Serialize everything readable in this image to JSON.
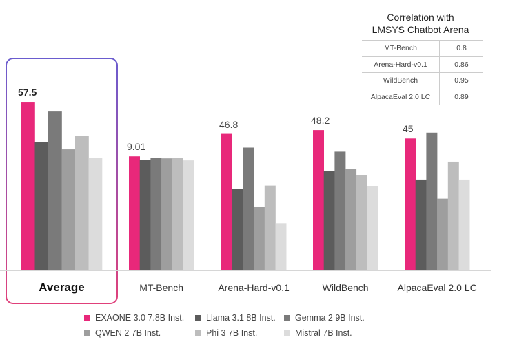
{
  "chart_data": {
    "type": "bar",
    "categories": [
      "Average",
      "MT-Bench",
      "Arena-Hard-v0.1",
      "WildBench",
      "AlpacaEval 2.0 LC"
    ],
    "highlighted_category": "Average",
    "series": [
      {
        "name": "EXAONE 3.0 7.8B Inst.",
        "color": "#e8287a",
        "values": [
          57.5,
          9.01,
          46.8,
          48.2,
          45
        ]
      },
      {
        "name": "Llama 3.1 8B Inst.",
        "color": "#5c5c5c",
        "values": [
          43.7,
          8.74,
          28.0,
          34.1,
          31.0
        ]
      },
      {
        "name": "Gemma 2 9B Inst.",
        "color": "#7a7a7a",
        "values": [
          54.2,
          8.9,
          42.1,
          40.8,
          47.0
        ]
      },
      {
        "name": "QWEN 2 7B Inst.",
        "color": "#9e9e9e",
        "values": [
          41.3,
          8.85,
          21.7,
          34.9,
          24.5
        ]
      },
      {
        "name": "Phi 3 7B Inst.",
        "color": "#bdbdbd",
        "values": [
          46.0,
          8.9,
          29.1,
          32.8,
          37.1
        ]
      },
      {
        "name": "Mistral 7B Inst.",
        "color": "#dcdcdc",
        "values": [
          38.3,
          8.69,
          16.2,
          29.0,
          31.0
        ]
      }
    ],
    "data_labels": [
      "57.5",
      "9.01",
      "46.8",
      "48.2",
      "45"
    ],
    "legend_position": "bottom",
    "grid": false
  },
  "correlation_table": {
    "title_line1": "Correlation with",
    "title_line2": "LMSYS Chatbot Arena",
    "rows": [
      {
        "metric": "MT-Bench",
        "value": "0.8"
      },
      {
        "metric": "Arena-Hard-v0.1",
        "value": "0.86"
      },
      {
        "metric": "WildBench",
        "value": "0.95"
      },
      {
        "metric": "AlpacaEval 2.0 LC",
        "value": "0.89"
      }
    ]
  }
}
